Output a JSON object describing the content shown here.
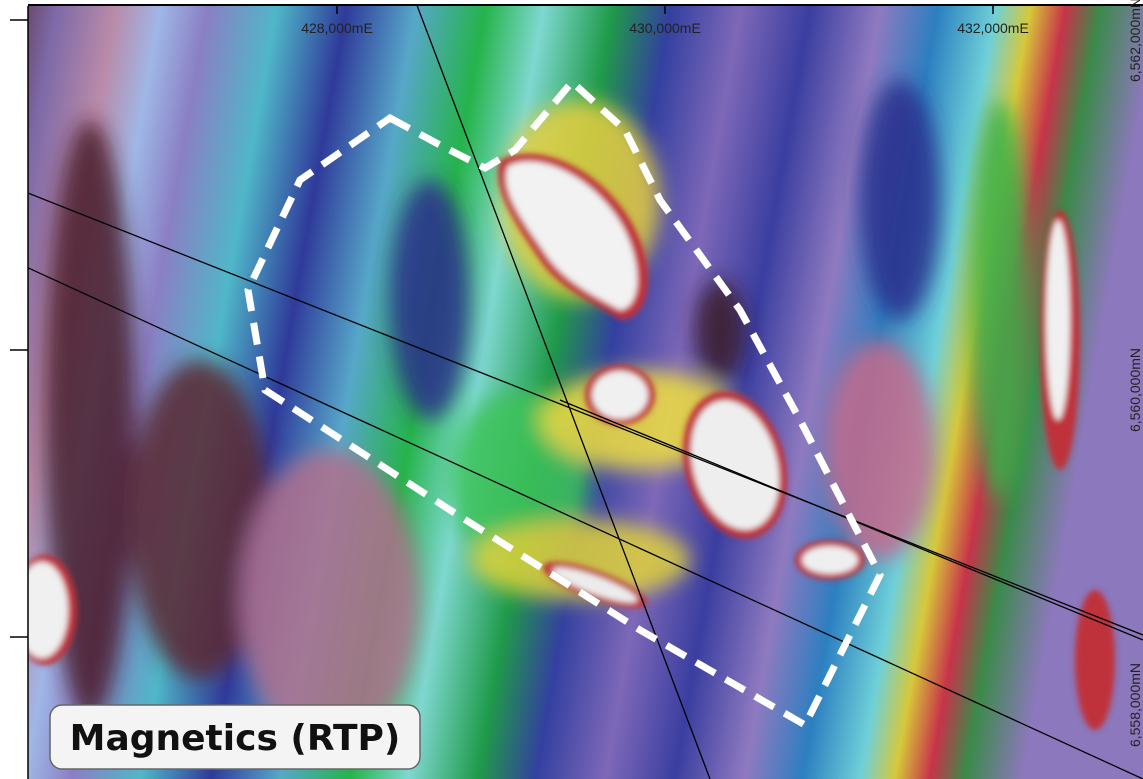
{
  "map": {
    "title": "Magnetics (RTP)",
    "eastings": [
      "428,000mE",
      "430,000mE",
      "432,000mE"
    ],
    "northings": [
      "6,562,000mN",
      "6,560,000mN",
      "6,558,000mN"
    ]
  }
}
